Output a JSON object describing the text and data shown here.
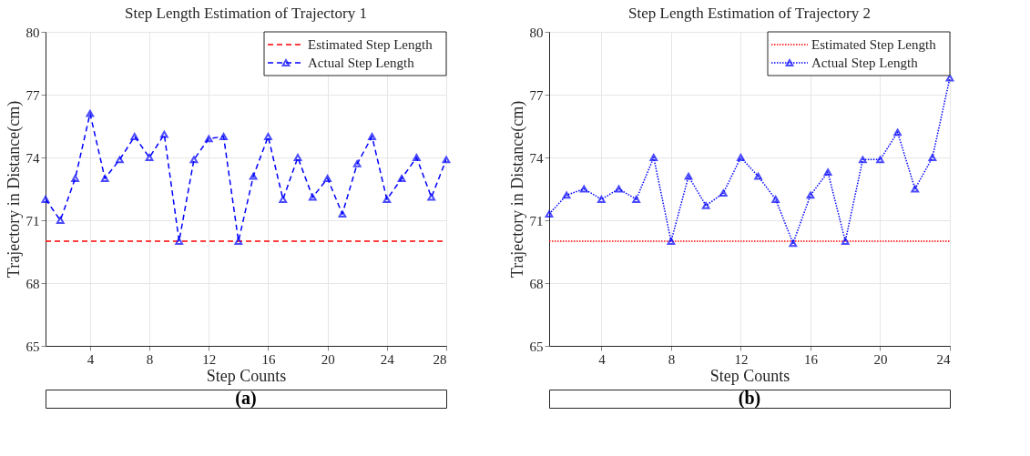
{
  "chart_data": [
    {
      "type": "line",
      "title": "Step Length Estimation of Trajectory 1",
      "xlabel": "Step Counts",
      "ylabel": "Trajectory in Distance(cm)",
      "x": [
        1,
        2,
        3,
        4,
        5,
        6,
        7,
        8,
        9,
        10,
        11,
        12,
        13,
        14,
        15,
        16,
        17,
        18,
        19,
        20,
        21,
        22,
        23,
        24,
        25,
        26,
        27,
        28
      ],
      "series": [
        {
          "name": "Estimated Step Length",
          "color": "#ff0000",
          "x": [
            1,
            28
          ],
          "values": [
            70.0,
            70.0
          ],
          "marker": "none",
          "line_style": "dashed"
        },
        {
          "name": "Actual Step Length",
          "color": "#0000ff",
          "marker": "triangle",
          "line_style": "dashed",
          "values": [
            72.0,
            71.0,
            73.0,
            76.1,
            73.0,
            73.9,
            75.0,
            74.0,
            75.1,
            70.0,
            73.9,
            74.9,
            75.0,
            70.0,
            73.1,
            75.0,
            72.0,
            74.0,
            72.1,
            73.0,
            71.3,
            73.7,
            75.0,
            72.0,
            73.0,
            74.0,
            72.1,
            73.9
          ]
        }
      ],
      "xlim": [
        1,
        28
      ],
      "xticks": [
        4,
        8,
        12,
        16,
        20,
        24,
        28
      ],
      "ylim": [
        65,
        80
      ],
      "yticks": [
        65,
        68,
        71,
        74,
        77,
        80
      ],
      "grid": true,
      "legend": "top right",
      "annotations": [
        "(a)"
      ]
    },
    {
      "type": "line",
      "title": "Step Length Estimation of Trajectory 2",
      "xlabel": "Step Counts",
      "ylabel": "Trajectory in Distance(cm)",
      "x": [
        1,
        2,
        3,
        4,
        5,
        6,
        7,
        8,
        9,
        10,
        11,
        12,
        13,
        14,
        15,
        16,
        17,
        18,
        19,
        20,
        21,
        22,
        23,
        24
      ],
      "series": [
        {
          "name": "Estimated Step Length",
          "color": "#ff0000",
          "x": [
            1,
            24
          ],
          "values": [
            70.0,
            70.0
          ],
          "marker": "none",
          "line_style": "dotted"
        },
        {
          "name": "Actual Step Length",
          "color": "#0000ff",
          "marker": "triangle",
          "line_style": "dotted",
          "values": [
            71.3,
            72.2,
            72.5,
            72.0,
            72.5,
            72.0,
            74.0,
            70.0,
            73.1,
            71.7,
            72.3,
            74.0,
            73.1,
            72.0,
            69.9,
            72.2,
            73.3,
            70.0,
            73.9,
            73.9,
            75.2,
            72.5,
            74.0,
            77.8
          ]
        }
      ],
      "xlim": [
        1,
        24
      ],
      "xticks": [
        4,
        8,
        12,
        16,
        20,
        24
      ],
      "ylim": [
        65,
        80
      ],
      "yticks": [
        65,
        68,
        71,
        74,
        77,
        80
      ],
      "grid": true,
      "legend": "top right",
      "annotations": [
        "(b)"
      ]
    }
  ]
}
